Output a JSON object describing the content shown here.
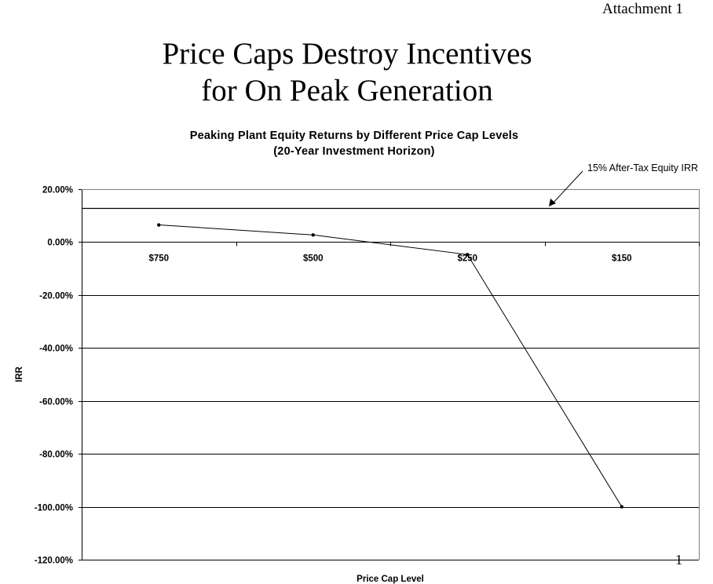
{
  "attachment_label": "Attachment 1",
  "slide_title_lines": [
    "Price Caps Destroy Incentives",
    "for On Peak Generation"
  ],
  "page_number": "1",
  "chart_data": {
    "type": "line",
    "title": "Peaking Plant Equity Returns by Different Price Cap Levels",
    "subtitle": "(20-Year Investment Horizon)",
    "xlabel": "Price Cap Level",
    "ylabel": "IRR",
    "categories": [
      "$750",
      "$500",
      "$250",
      "$150"
    ],
    "series": [
      {
        "values": [
          6.5,
          2.7,
          -4.7,
          -100.0
        ]
      }
    ],
    "ylim": [
      -120,
      20
    ],
    "y_ticks": [
      20,
      0,
      -20,
      -40,
      -60,
      -80,
      -100,
      -120
    ],
    "y_tick_labels": [
      "20.00%",
      "0.00%",
      "-20.00%",
      "-40.00%",
      "-60.00%",
      "-80.00%",
      "-100.00%",
      "-120.00%"
    ],
    "grid": true,
    "reference_line": {
      "value": 13.0,
      "label": "15% After-Tax Equity IRR"
    },
    "colors": {
      "line": "#000000",
      "grid": "#000000",
      "background": "#ffffff"
    }
  }
}
